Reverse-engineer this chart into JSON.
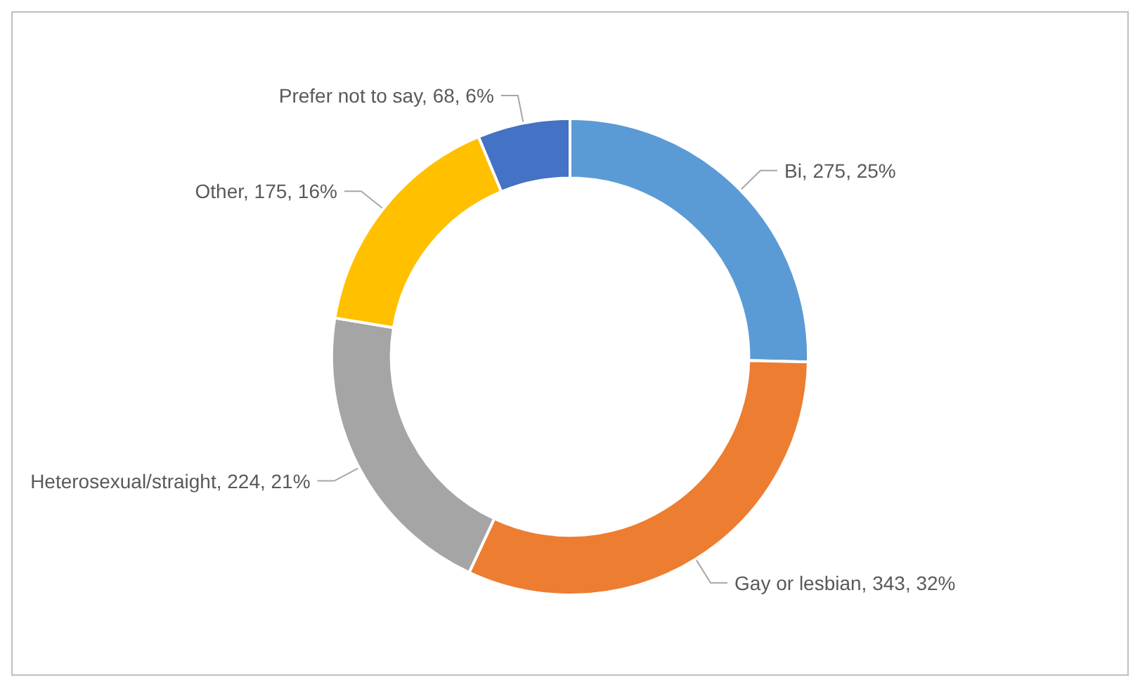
{
  "chart_data": {
    "type": "donut",
    "categories": [
      "Bi",
      "Gay or lesbian",
      "Heterosexual/straight",
      "Other",
      "Prefer not to say"
    ],
    "values": [
      275,
      343,
      224,
      175,
      68
    ],
    "value_labels": [
      "275, 25%",
      "343, 32%",
      "224, 21%",
      "175, 16%",
      "68, 6%"
    ],
    "colors": [
      "#5b9bd5",
      "#ed7d31",
      "#a5a5a5",
      "#ffc000",
      "#4472c4"
    ],
    "legend": false
  }
}
